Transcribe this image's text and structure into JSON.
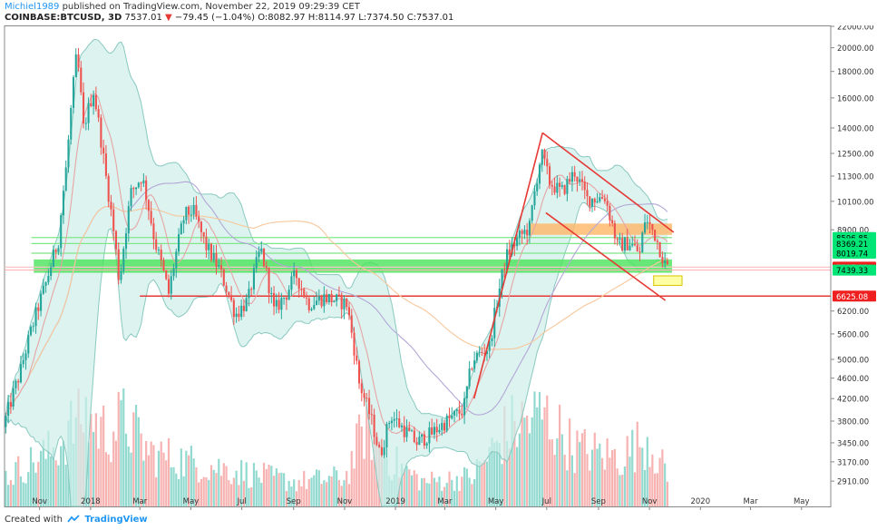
{
  "header": {
    "author": "Michiel1989",
    "published": " published on TradingView.com, November 22, 2019 09:29:39 CET",
    "symbol": "COINBASE:BTCUSD, 3D",
    "price": " 7537.01 ",
    "change_arrow": "▼",
    "change": " −79.45 (−1.04%)",
    "ohlc": " O:8082.97 H:8114.97 L:7374.50 C:7537.01"
  },
  "footer": {
    "created_with": "Created with",
    "brand": "TradingView"
  },
  "colors": {
    "up": "#26a69a",
    "down": "#ef5350",
    "bb_fill": "#cfeeea",
    "bb_line": "#89c9c0",
    "green_zone": "#4be35b",
    "orange_zone": "#ffb766",
    "yellow_zone": "#ffff8c",
    "red_line": "#e53935",
    "ma_long": "#f7c79b",
    "ma_mid": "#b4a7d6",
    "ma_short": "#e6a5a5"
  },
  "chart_data": {
    "type": "candlestick",
    "symbol": "COINBASE:BTCUSD",
    "interval": "3D",
    "price_scale": "log",
    "x": {
      "start": "2017-09-20",
      "end": "2020-06-05",
      "ticks": [
        {
          "label": "Nov",
          "date": "2017-11-01"
        },
        {
          "label": "2018",
          "date": "2018-01-01"
        },
        {
          "label": "Mar",
          "date": "2018-03-01"
        },
        {
          "label": "May",
          "date": "2018-05-01"
        },
        {
          "label": "Jul",
          "date": "2018-07-01"
        },
        {
          "label": "Sep",
          "date": "2018-09-01"
        },
        {
          "label": "Nov",
          "date": "2018-11-01"
        },
        {
          "label": "2019",
          "date": "2019-01-01"
        },
        {
          "label": "Mar",
          "date": "2019-03-01"
        },
        {
          "label": "May",
          "date": "2019-05-01"
        },
        {
          "label": "Jul",
          "date": "2019-07-01"
        },
        {
          "label": "Sep",
          "date": "2019-09-01"
        },
        {
          "label": "Nov",
          "date": "2019-11-01"
        },
        {
          "label": "2020",
          "date": "2020-01-01"
        },
        {
          "label": "Mar",
          "date": "2020-03-01"
        },
        {
          "label": "May",
          "date": "2020-05-01"
        }
      ]
    },
    "y": {
      "min": 2600,
      "max": 22000,
      "ticks": [
        22000,
        20000,
        18000,
        16000,
        14000,
        12500,
        11300,
        10100,
        8900,
        6200,
        5600,
        5000,
        4600,
        4200,
        3800,
        3450,
        3170,
        2910
      ],
      "tick_labels": [
        "22000.00",
        "20000.00",
        "18000.00",
        "16000.00",
        "14000.00",
        "12500.00",
        "11300.00",
        "10100.00",
        "8900.00",
        "6200.00",
        "5600.00",
        "5000.00",
        "4600.00",
        "4200.00",
        "3800.00",
        "3450.00",
        "3170.00",
        "2910.00"
      ]
    },
    "price_path": [
      [
        "2017-09-20",
        3700
      ],
      [
        "2017-10-10",
        4700
      ],
      [
        "2017-10-25",
        5800
      ],
      [
        "2017-11-10",
        7000
      ],
      [
        "2017-11-25",
        8500
      ],
      [
        "2017-12-05",
        12000
      ],
      [
        "2017-12-17",
        19500
      ],
      [
        "2017-12-25",
        14000
      ],
      [
        "2018-01-06",
        16500
      ],
      [
        "2018-01-20",
        11500
      ],
      [
        "2018-02-06",
        7000
      ],
      [
        "2018-02-20",
        10500
      ],
      [
        "2018-03-05",
        11300
      ],
      [
        "2018-03-20",
        8500
      ],
      [
        "2018-04-06",
        6700
      ],
      [
        "2018-04-25",
        9500
      ],
      [
        "2018-05-05",
        9700
      ],
      [
        "2018-05-20",
        8300
      ],
      [
        "2018-06-05",
        7500
      ],
      [
        "2018-06-25",
        6100
      ],
      [
        "2018-07-10",
        6500
      ],
      [
        "2018-07-25",
        8200
      ],
      [
        "2018-08-10",
        6200
      ],
      [
        "2018-08-25",
        6700
      ],
      [
        "2018-09-05",
        7300
      ],
      [
        "2018-09-20",
        6400
      ],
      [
        "2018-10-10",
        6600
      ],
      [
        "2018-11-05",
        6400
      ],
      [
        "2018-11-20",
        4500
      ],
      [
        "2018-12-05",
        3800
      ],
      [
        "2018-12-15",
        3250
      ],
      [
        "2018-12-28",
        3900
      ],
      [
        "2019-01-10",
        3700
      ],
      [
        "2019-01-28",
        3450
      ],
      [
        "2019-02-15",
        3600
      ],
      [
        "2019-03-05",
        3800
      ],
      [
        "2019-03-25",
        4000
      ],
      [
        "2019-04-05",
        5000
      ],
      [
        "2019-04-25",
        5300
      ],
      [
        "2019-05-15",
        7900
      ],
      [
        "2019-05-30",
        8600
      ],
      [
        "2019-06-12",
        9000
      ],
      [
        "2019-06-26",
        12500
      ],
      [
        "2019-07-06",
        11000
      ],
      [
        "2019-07-20",
        10500
      ],
      [
        "2019-08-05",
        11500
      ],
      [
        "2019-08-20",
        10200
      ],
      [
        "2019-09-10",
        10300
      ],
      [
        "2019-09-25",
        8300
      ],
      [
        "2019-10-10",
        8400
      ],
      [
        "2019-10-22",
        8000
      ],
      [
        "2019-10-28",
        9300
      ],
      [
        "2019-11-08",
        8800
      ],
      [
        "2019-11-22",
        7537
      ]
    ],
    "volume_path": [
      [
        "2017-09-20",
        0.3
      ],
      [
        "2017-11-20",
        0.6
      ],
      [
        "2017-12-20",
        0.95
      ],
      [
        "2018-01-20",
        0.75
      ],
      [
        "2018-02-10",
        0.9
      ],
      [
        "2018-03-10",
        0.55
      ],
      [
        "2018-05-01",
        0.45
      ],
      [
        "2018-07-01",
        0.35
      ],
      [
        "2018-09-01",
        0.25
      ],
      [
        "2018-11-01",
        0.3
      ],
      [
        "2018-11-25",
        0.85
      ],
      [
        "2018-12-20",
        0.5
      ],
      [
        "2019-02-01",
        0.25
      ],
      [
        "2019-04-01",
        0.3
      ],
      [
        "2019-05-15",
        0.8
      ],
      [
        "2019-06-26",
        0.95
      ],
      [
        "2019-08-01",
        0.6
      ],
      [
        "2019-09-25",
        0.5
      ],
      [
        "2019-10-28",
        0.7
      ],
      [
        "2019-11-22",
        0.3
      ]
    ],
    "price_labels": [
      {
        "value": 8596.85,
        "text": "8596.85",
        "bg": "#00e676",
        "fg": "#000000"
      },
      {
        "value": 8369.21,
        "text": "8369.21",
        "bg": "#00e676",
        "fg": "#000000"
      },
      {
        "value": 8019.74,
        "text": "8019.74",
        "bg": "#00e676",
        "fg": "#000000"
      },
      {
        "value": 7537.01,
        "text": "7537.01",
        "bg": "#ef1f1f",
        "fg": "#ffffff"
      },
      {
        "value": 7439.33,
        "text": "7439.33",
        "bg": "#00e676",
        "fg": "#000000"
      },
      {
        "value": 6625.08,
        "text": "6625.08",
        "bg": "#ef1f1f",
        "fg": "#ffffff"
      }
    ],
    "zones": [
      {
        "name": "green-support-zone",
        "from": "2017-10-25",
        "to": "2019-11-28",
        "low": 7350,
        "high": 7800
      },
      {
        "name": "orange-resistance-zone",
        "from": "2019-06-10",
        "to": "2019-11-28",
        "low": 8700,
        "high": 9150
      },
      {
        "name": "yellow-target-zone",
        "from": "2019-11-06",
        "to": "2019-12-10",
        "low": 6950,
        "high": 7250
      }
    ],
    "horizontal_lines": [
      {
        "from": "2017-10-22",
        "to": "2019-11-28",
        "value": 8596.85,
        "color": "#7ee887"
      },
      {
        "from": "2017-10-22",
        "to": "2019-11-28",
        "value": 8369.21,
        "color": "#7ee887"
      },
      {
        "from": "2017-10-22",
        "to": "2019-11-28",
        "value": 8019.74,
        "color": "#7ee887"
      },
      {
        "from": "2017-09-20",
        "to": "2020-06-05",
        "value": 7537.01,
        "color": "#f4c7c3"
      },
      {
        "from": "2017-09-20",
        "to": "2020-06-05",
        "value": 7439.33,
        "color": "#ffb3b3"
      },
      {
        "from": "2018-03-01",
        "to": "2020-06-05",
        "value": 6625.08,
        "color": "#e53935"
      }
    ],
    "trendlines": [
      {
        "name": "rally-trendline",
        "from": [
          "2019-04-05",
          4200
        ],
        "to": [
          "2019-06-26",
          13700
        ]
      },
      {
        "name": "channel-top-line",
        "from": [
          "2019-06-26",
          13700
        ],
        "to": [
          "2019-11-30",
          8800
        ]
      },
      {
        "name": "channel-bottom-line",
        "from": [
          "2019-06-30",
          9600
        ],
        "to": [
          "2019-11-20",
          6500
        ]
      }
    ]
  }
}
